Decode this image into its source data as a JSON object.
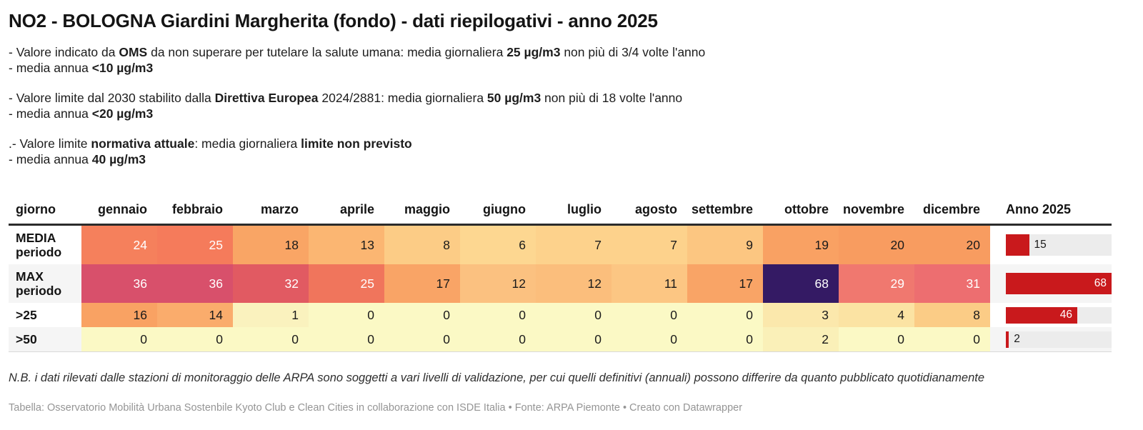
{
  "title": "NO2 - BOLOGNA Giardini Margherita (fondo) - dati riepilogativi - anno 2025",
  "notes": {
    "groups": [
      {
        "lines": [
          {
            "segments": [
              {
                "text": "- Valore indicato da ",
                "bold": false
              },
              {
                "text": "OMS",
                "bold": true
              },
              {
                "text": " da non superare per tutelare la salute umana: media giornaliera ",
                "bold": false
              },
              {
                "text": "25 µg/m3",
                "bold": true
              },
              {
                "text": " non più di 3/4 volte l'anno",
                "bold": false
              }
            ]
          },
          {
            "segments": [
              {
                "text": "- media annua ",
                "bold": false
              },
              {
                "text": "<10 µg/m3",
                "bold": true
              }
            ]
          }
        ]
      },
      {
        "lines": [
          {
            "segments": [
              {
                "text": "- Valore limite dal 2030 stabilito dalla ",
                "bold": false
              },
              {
                "text": "Direttiva Europea",
                "bold": true
              },
              {
                "text": " 2024/2881: media giornaliera ",
                "bold": false
              },
              {
                "text": "50 µg/m3",
                "bold": true
              },
              {
                "text": " non più di 18 volte l'anno",
                "bold": false
              }
            ]
          },
          {
            "segments": [
              {
                "text": "- media annua ",
                "bold": false
              },
              {
                "text": "<20 µg/m3",
                "bold": true
              }
            ]
          }
        ]
      },
      {
        "lines": [
          {
            "segments": [
              {
                "text": ".- Valore limite ",
                "bold": false
              },
              {
                "text": "normativa attuale",
                "bold": true
              },
              {
                "text": ": media giornaliera ",
                "bold": false
              },
              {
                "text": "limite non previsto",
                "bold": true
              }
            ]
          },
          {
            "segments": [
              {
                "text": "- media annua ",
                "bold": false
              },
              {
                "text": "40 µg/m3",
                "bold": true
              }
            ]
          }
        ]
      }
    ]
  },
  "colors": {
    "bar_red": "#c9191c",
    "bar_track": "#ececec",
    "header_rule": "#2b2b2b",
    "stripe": "#f5f5f5",
    "text_dark": "#1a1a1a",
    "text_white": "#ffffff"
  },
  "table": {
    "columns": [
      "giorno",
      "gennaio",
      "febbraio",
      "marzo",
      "aprile",
      "maggio",
      "giugno",
      "luglio",
      "agosto",
      "settembre",
      "ottobre",
      "novembre",
      "dicembre",
      "Anno 2025"
    ],
    "rows": [
      {
        "label_lines": [
          "MEDIA",
          "periodo"
        ],
        "cells": [
          {
            "v": "24",
            "bg": "#F5805C",
            "fg": "#ffffff"
          },
          {
            "v": "25",
            "bg": "#F57B5B",
            "fg": "#ffffff"
          },
          {
            "v": "18",
            "bg": "#F9A565",
            "fg": "#1a1a1a"
          },
          {
            "v": "13",
            "bg": "#FBB672",
            "fg": "#1a1a1a"
          },
          {
            "v": "8",
            "bg": "#FCCC86",
            "fg": "#1a1a1a"
          },
          {
            "v": "6",
            "bg": "#FDD791",
            "fg": "#1a1a1a"
          },
          {
            "v": "7",
            "bg": "#FDD28C",
            "fg": "#1a1a1a"
          },
          {
            "v": "7",
            "bg": "#FDD28C",
            "fg": "#1a1a1a"
          },
          {
            "v": "9",
            "bg": "#FCC681",
            "fg": "#1a1a1a"
          },
          {
            "v": "19",
            "bg": "#F9A163",
            "fg": "#1a1a1a"
          },
          {
            "v": "20",
            "bg": "#F89C60",
            "fg": "#1a1a1a"
          },
          {
            "v": "20",
            "bg": "#F89C60",
            "fg": "#1a1a1a"
          }
        ],
        "bar": {
          "value": "15",
          "pct": 22,
          "label_inside": false
        }
      },
      {
        "label_lines": [
          "MAX",
          "periodo"
        ],
        "cells": [
          {
            "v": "36",
            "bg": "#D8506B",
            "fg": "#ffffff"
          },
          {
            "v": "36",
            "bg": "#D8506B",
            "fg": "#ffffff"
          },
          {
            "v": "32",
            "bg": "#E15A62",
            "fg": "#ffffff"
          },
          {
            "v": "25",
            "bg": "#F0755C",
            "fg": "#ffffff"
          },
          {
            "v": "17",
            "bg": "#F9A466",
            "fg": "#1a1a1a"
          },
          {
            "v": "12",
            "bg": "#FBC180",
            "fg": "#1a1a1a"
          },
          {
            "v": "12",
            "bg": "#FBBE7C",
            "fg": "#1a1a1a"
          },
          {
            "v": "11",
            "bg": "#FCC683",
            "fg": "#1a1a1a"
          },
          {
            "v": "17",
            "bg": "#F9A466",
            "fg": "#1a1a1a"
          },
          {
            "v": "68",
            "bg": "#341A64",
            "fg": "#ffffff"
          },
          {
            "v": "29",
            "bg": "#F0786F",
            "fg": "#ffffff"
          },
          {
            "v": "31",
            "bg": "#ED6E70",
            "fg": "#ffffff"
          }
        ],
        "bar": {
          "value": "68",
          "pct": 100,
          "label_inside": true
        }
      },
      {
        "label_lines": [
          ">25"
        ],
        "cells": [
          {
            "v": "16",
            "bg": "#F9A263",
            "fg": "#1a1a1a"
          },
          {
            "v": "14",
            "bg": "#FAAC6C",
            "fg": "#1a1a1a"
          },
          {
            "v": "1",
            "bg": "#FAF2BE",
            "fg": "#1a1a1a"
          },
          {
            "v": "0",
            "bg": "#FBF9C5",
            "fg": "#1a1a1a"
          },
          {
            "v": "0",
            "bg": "#FBF9C5",
            "fg": "#1a1a1a"
          },
          {
            "v": "0",
            "bg": "#FBF9C5",
            "fg": "#1a1a1a"
          },
          {
            "v": "0",
            "bg": "#FBF9C5",
            "fg": "#1a1a1a"
          },
          {
            "v": "0",
            "bg": "#FBF9C5",
            "fg": "#1a1a1a"
          },
          {
            "v": "0",
            "bg": "#FBF9C5",
            "fg": "#1a1a1a"
          },
          {
            "v": "3",
            "bg": "#FBE8AC",
            "fg": "#1a1a1a"
          },
          {
            "v": "4",
            "bg": "#FBE3A3",
            "fg": "#1a1a1a"
          },
          {
            "v": "8",
            "bg": "#FBCC86",
            "fg": "#1a1a1a"
          }
        ],
        "bar": {
          "value": "46",
          "pct": 67.6,
          "label_inside": true
        }
      },
      {
        "label_lines": [
          ">50"
        ],
        "cells": [
          {
            "v": "0",
            "bg": "#FBF9C5",
            "fg": "#1a1a1a"
          },
          {
            "v": "0",
            "bg": "#FBF9C5",
            "fg": "#1a1a1a"
          },
          {
            "v": "0",
            "bg": "#FBF9C5",
            "fg": "#1a1a1a"
          },
          {
            "v": "0",
            "bg": "#FBF9C5",
            "fg": "#1a1a1a"
          },
          {
            "v": "0",
            "bg": "#FBF9C5",
            "fg": "#1a1a1a"
          },
          {
            "v": "0",
            "bg": "#FBF9C5",
            "fg": "#1a1a1a"
          },
          {
            "v": "0",
            "bg": "#FBF9C5",
            "fg": "#1a1a1a"
          },
          {
            "v": "0",
            "bg": "#FBF9C5",
            "fg": "#1a1a1a"
          },
          {
            "v": "0",
            "bg": "#FBF9C5",
            "fg": "#1a1a1a"
          },
          {
            "v": "2",
            "bg": "#FAF0B8",
            "fg": "#1a1a1a"
          },
          {
            "v": "0",
            "bg": "#FBF9C5",
            "fg": "#1a1a1a"
          },
          {
            "v": "0",
            "bg": "#FBF9C5",
            "fg": "#1a1a1a"
          }
        ],
        "bar": {
          "value": "2",
          "pct": 2.9,
          "label_inside": false
        }
      }
    ]
  },
  "footnote": "N.B. i dati rilevati dalle stazioni di monitoraggio delle ARPA sono soggetti a vari livelli di validazione, per cui quelli definitivi (annuali) possono differire da quanto pubblicato quotidianamente",
  "credits": "Tabella: Osservatorio Mobilità Urbana Sostenbile Kyoto Club e Clean Cities in collaborazione con ISDE Italia • Fonte: ARPA Piemonte • Creato con Datawrapper",
  "chart_data": {
    "type": "table",
    "title": "NO2 - BOLOGNA Giardini Margherita (fondo) - dati riepilogativi - anno 2025",
    "columns": [
      "gennaio",
      "febbraio",
      "marzo",
      "aprile",
      "maggio",
      "giugno",
      "luglio",
      "agosto",
      "settembre",
      "ottobre",
      "novembre",
      "dicembre"
    ],
    "rows": [
      {
        "name": "MEDIA periodo",
        "values": [
          24,
          25,
          18,
          13,
          8,
          6,
          7,
          7,
          9,
          19,
          20,
          20
        ],
        "anno_2025": 15
      },
      {
        "name": "MAX periodo",
        "values": [
          36,
          36,
          32,
          25,
          17,
          12,
          12,
          11,
          17,
          68,
          29,
          31
        ],
        "anno_2025": 68
      },
      {
        "name": ">25",
        "values": [
          16,
          14,
          1,
          0,
          0,
          0,
          0,
          0,
          0,
          3,
          4,
          8
        ],
        "anno_2025": 46
      },
      {
        "name": ">50",
        "values": [
          0,
          0,
          0,
          0,
          0,
          0,
          0,
          0,
          0,
          2,
          0,
          0
        ],
        "anno_2025": 2
      }
    ],
    "anno_bar_axis_max": 68,
    "cell_shading": "heatmap yellow-orange-red-purple by value",
    "legend_position": "none",
    "grid": false
  }
}
